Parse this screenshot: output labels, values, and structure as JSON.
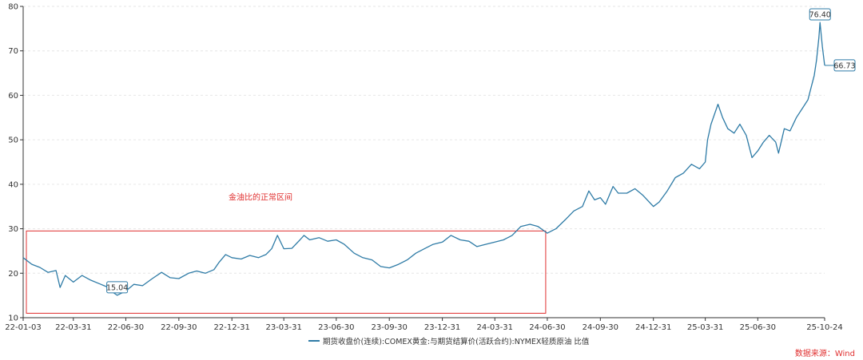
{
  "chart_data": {
    "type": "line",
    "title": "",
    "xlabel": "",
    "ylabel": "",
    "ylim": [
      10,
      80
    ],
    "x_range": [
      "2022-01-03",
      "2025-10-24"
    ],
    "yticks": [
      10,
      20,
      30,
      40,
      50,
      60,
      70,
      80
    ],
    "xticks": [
      "22-01-03",
      "22-03-31",
      "22-06-30",
      "22-09-30",
      "22-12-31",
      "23-03-31",
      "23-06-30",
      "23-09-30",
      "23-12-31",
      "24-03-31",
      "24-06-30",
      "24-09-30",
      "24-12-31",
      "25-03-31",
      "25-06-30",
      "25-10-24"
    ],
    "grid": "horizontal dashed",
    "legend_position": "bottom-center",
    "series": [
      {
        "name": "期货收盘价(连续):COMEX黄金:与期货结算价(活跃合约):NYMEX轻质原油 比值",
        "color": "#2e7ba6",
        "points": [
          [
            "2022-01-03",
            23.5
          ],
          [
            "2022-01-18",
            22.0
          ],
          [
            "2022-02-01",
            21.3
          ],
          [
            "2022-02-15",
            20.2
          ],
          [
            "2022-03-01",
            20.6
          ],
          [
            "2022-03-08",
            16.8
          ],
          [
            "2022-03-17",
            19.5
          ],
          [
            "2022-03-31",
            18.0
          ],
          [
            "2022-04-15",
            19.5
          ],
          [
            "2022-04-29",
            18.5
          ],
          [
            "2022-05-16",
            17.6
          ],
          [
            "2022-05-31",
            16.8
          ],
          [
            "2022-06-10",
            15.5
          ],
          [
            "2022-06-15",
            15.04
          ],
          [
            "2022-06-30",
            16.0
          ],
          [
            "2022-07-14",
            17.5
          ],
          [
            "2022-07-29",
            17.2
          ],
          [
            "2022-08-15",
            18.8
          ],
          [
            "2022-08-31",
            20.2
          ],
          [
            "2022-09-15",
            19.0
          ],
          [
            "2022-09-30",
            18.8
          ],
          [
            "2022-10-17",
            20.0
          ],
          [
            "2022-10-31",
            20.5
          ],
          [
            "2022-11-15",
            20.0
          ],
          [
            "2022-11-30",
            20.8
          ],
          [
            "2022-12-09",
            22.5
          ],
          [
            "2022-12-20",
            24.2
          ],
          [
            "2022-12-31",
            23.5
          ],
          [
            "2023-01-16",
            23.2
          ],
          [
            "2023-01-31",
            24.0
          ],
          [
            "2023-02-15",
            23.5
          ],
          [
            "2023-02-28",
            24.2
          ],
          [
            "2023-03-10",
            25.5
          ],
          [
            "2023-03-20",
            28.5
          ],
          [
            "2023-03-31",
            25.5
          ],
          [
            "2023-04-14",
            25.6
          ],
          [
            "2023-04-28",
            27.5
          ],
          [
            "2023-05-05",
            28.5
          ],
          [
            "2023-05-15",
            27.5
          ],
          [
            "2023-05-31",
            28.0
          ],
          [
            "2023-06-15",
            27.2
          ],
          [
            "2023-06-30",
            27.5
          ],
          [
            "2023-07-14",
            26.5
          ],
          [
            "2023-07-31",
            24.5
          ],
          [
            "2023-08-15",
            23.5
          ],
          [
            "2023-08-31",
            23.0
          ],
          [
            "2023-09-15",
            21.5
          ],
          [
            "2023-09-30",
            21.2
          ],
          [
            "2023-10-16",
            22.0
          ],
          [
            "2023-10-31",
            23.0
          ],
          [
            "2023-11-15",
            24.5
          ],
          [
            "2023-11-30",
            25.5
          ],
          [
            "2023-12-15",
            26.5
          ],
          [
            "2023-12-31",
            27.0
          ],
          [
            "2024-01-15",
            28.5
          ],
          [
            "2024-01-31",
            27.5
          ],
          [
            "2024-02-15",
            27.2
          ],
          [
            "2024-02-29",
            26.0
          ],
          [
            "2024-03-15",
            26.5
          ],
          [
            "2024-03-31",
            27.0
          ],
          [
            "2024-04-15",
            27.5
          ],
          [
            "2024-04-30",
            28.5
          ],
          [
            "2024-05-15",
            30.5
          ],
          [
            "2024-05-31",
            31.0
          ],
          [
            "2024-06-14",
            30.5
          ],
          [
            "2024-06-30",
            29.0
          ],
          [
            "2024-07-15",
            30.0
          ],
          [
            "2024-07-31",
            32.0
          ],
          [
            "2024-08-15",
            34.0
          ],
          [
            "2024-08-30",
            35.0
          ],
          [
            "2024-09-10",
            38.5
          ],
          [
            "2024-09-20",
            36.5
          ],
          [
            "2024-09-30",
            37.0
          ],
          [
            "2024-10-09",
            35.5
          ],
          [
            "2024-10-22",
            39.5
          ],
          [
            "2024-10-31",
            38.0
          ],
          [
            "2024-11-15",
            38.0
          ],
          [
            "2024-11-29",
            39.0
          ],
          [
            "2024-12-13",
            37.5
          ],
          [
            "2024-12-31",
            35.0
          ],
          [
            "2025-01-10",
            36.0
          ],
          [
            "2025-01-24",
            38.5
          ],
          [
            "2025-02-07",
            41.5
          ],
          [
            "2025-02-21",
            42.5
          ],
          [
            "2025-03-07",
            44.5
          ],
          [
            "2025-03-21",
            43.5
          ],
          [
            "2025-03-31",
            45.0
          ],
          [
            "2025-04-04",
            50.0
          ],
          [
            "2025-04-10",
            53.5
          ],
          [
            "2025-04-22",
            58.0
          ],
          [
            "2025-04-30",
            55.0
          ],
          [
            "2025-05-09",
            52.5
          ],
          [
            "2025-05-20",
            51.5
          ],
          [
            "2025-05-30",
            53.5
          ],
          [
            "2025-06-10",
            51.0
          ],
          [
            "2025-06-20",
            46.0
          ],
          [
            "2025-06-30",
            47.5
          ],
          [
            "2025-07-10",
            49.5
          ],
          [
            "2025-07-20",
            51.0
          ],
          [
            "2025-07-31",
            49.5
          ],
          [
            "2025-08-05",
            47.0
          ],
          [
            "2025-08-15",
            52.5
          ],
          [
            "2025-08-25",
            52.0
          ],
          [
            "2025-09-05",
            55.0
          ],
          [
            "2025-09-15",
            57.0
          ],
          [
            "2025-09-25",
            59.0
          ],
          [
            "2025-10-01",
            62.0
          ],
          [
            "2025-10-06",
            64.5
          ],
          [
            "2025-10-10",
            68.0
          ],
          [
            "2025-10-14",
            73.0
          ],
          [
            "2025-10-16",
            76.4
          ],
          [
            "2025-10-20",
            71.0
          ],
          [
            "2025-10-24",
            66.73
          ]
        ]
      }
    ],
    "annotations": {
      "min_label": {
        "date": "2022-06-15",
        "value": 15.04,
        "text": "15.04"
      },
      "max_label": {
        "date": "2025-10-16",
        "value": 76.4,
        "text": "76.40"
      },
      "last_label": {
        "date": "2025-10-24",
        "value": 66.73,
        "text": "66.73"
      },
      "normal_range": {
        "label": "金油比的正常区间",
        "x_start": "2022-01-03",
        "x_end": "2024-06-30",
        "y_min": 11,
        "y_max": 29.5,
        "color": "#e03030"
      }
    }
  },
  "legend": {
    "label": "期货收盘价(连续):COMEX黄金:与期货结算价(活跃合约):NYMEX轻质原油 比值"
  },
  "source": {
    "text": "数据来源：Wind"
  }
}
